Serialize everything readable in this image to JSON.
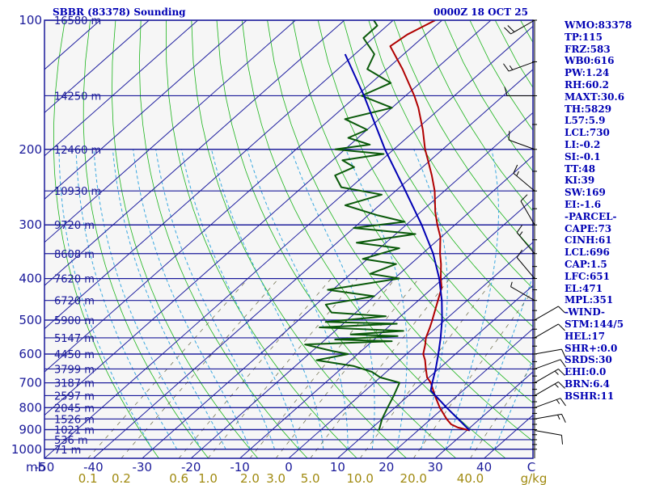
{
  "header": {
    "station_title": "SBBR (83378) Sounding",
    "valid_time": "0000Z 18 OCT 25"
  },
  "indices": [
    {
      "label": "WMO:83378"
    },
    {
      "label": "TP:115"
    },
    {
      "label": "FRZ:583"
    },
    {
      "label": "WB0:616"
    },
    {
      "label": "PW:1.24"
    },
    {
      "label": "RH:60.2"
    },
    {
      "label": "MAXT:30.6"
    },
    {
      "label": "TH:5829"
    },
    {
      "label": "L57:5.9"
    },
    {
      "label": "LCL:730"
    },
    {
      "label": "LI:-0.2"
    },
    {
      "label": "SI:-0.1"
    },
    {
      "label": "TT:48"
    },
    {
      "label": "KI:39"
    },
    {
      "label": "SW:169"
    },
    {
      "label": "EI:-1.6"
    },
    {
      "label": "-PARCEL-"
    },
    {
      "label": "CAPE:73"
    },
    {
      "label": "CINH:61"
    },
    {
      "label": "LCL:696"
    },
    {
      "label": "CAP:1.5"
    },
    {
      "label": "LFC:651"
    },
    {
      "label": "EL:471"
    },
    {
      "label": "MPL:351"
    },
    {
      "label": "-WIND-"
    },
    {
      "label": "STM:144/5"
    },
    {
      "label": "HEL:17"
    },
    {
      "label": "SHR+:0.0"
    },
    {
      "label": "SRDS:30"
    },
    {
      "label": "EHI:0.0"
    },
    {
      "label": "BRN:6.4"
    },
    {
      "label": "BSHR:11"
    }
  ],
  "chart_data": {
    "type": "skew-t log-p",
    "title": "SBBR (83378) Sounding",
    "valid_time": "0000Z 18 OCT 25",
    "pressure_unit": "mb",
    "temperature_unit": "C",
    "mixing_ratio_unit": "g/kg",
    "pressure_levels": [
      100,
      200,
      300,
      400,
      500,
      600,
      700,
      800,
      900,
      1000
    ],
    "pressure_tick_labels": [
      "100",
      "200",
      "300",
      "400",
      "500",
      "600",
      "700",
      "800",
      "900",
      "1000"
    ],
    "pressure_axis_label": "mb",
    "pressure_range": [
      100,
      1050
    ],
    "temperature_ticks": [
      -50,
      -40,
      -30,
      -20,
      -10,
      0,
      10,
      20,
      30,
      40
    ],
    "temperature_tick_labels": [
      "-50",
      "-40",
      "-30",
      "-20",
      "-10",
      "0",
      "10",
      "20",
      "30",
      "40"
    ],
    "temperature_range_at_bottom": [
      -50,
      50
    ],
    "temperature_axis_label": "C",
    "mixing_ratio_ticks": [
      0.1,
      0.2,
      0.6,
      1.0,
      2.0,
      3.0,
      5.0,
      10.0,
      20.0,
      40.0
    ],
    "mixing_ratio_tick_labels": [
      "0.1",
      "0.2",
      "0.6",
      "1.0",
      "2.0",
      "3.0",
      "5.0",
      "10.0",
      "20.0",
      "40.0"
    ],
    "mixing_ratio_axis_label": "g/kg",
    "height_levels": [
      {
        "label": "16580 m",
        "pressure": 100
      },
      {
        "label": "14250 m",
        "pressure": 150
      },
      {
        "label": "12460 m",
        "pressure": 200
      },
      {
        "label": "10930 m",
        "pressure": 250
      },
      {
        "label": "9720 m",
        "pressure": 300
      },
      {
        "label": "8608 m",
        "pressure": 350
      },
      {
        "label": "7620 m",
        "pressure": 400
      },
      {
        "label": "6720 m",
        "pressure": 450
      },
      {
        "label": "5900 m",
        "pressure": 500
      },
      {
        "label": "5147 m",
        "pressure": 550
      },
      {
        "label": "4450 m",
        "pressure": 600
      },
      {
        "label": "3799 m",
        "pressure": 650
      },
      {
        "label": "3187 m",
        "pressure": 700
      },
      {
        "label": "2597 m",
        "pressure": 750
      },
      {
        "label": "2045 m",
        "pressure": 800
      },
      {
        "label": "1526 m",
        "pressure": 850
      },
      {
        "label": "1021 m",
        "pressure": 900
      },
      {
        "label": "536 m",
        "pressure": 950
      },
      {
        "label": "71 m",
        "pressure": 1000
      }
    ],
    "series": [
      {
        "name": "Temperature",
        "color": "#b00000",
        "points": [
          [
            904,
            30.6
          ],
          [
            890,
            27.5
          ],
          [
            875,
            25.4
          ],
          [
            850,
            23.2
          ],
          [
            800,
            19.2
          ],
          [
            750,
            15.4
          ],
          [
            700,
            11.6
          ],
          [
            680,
            9.6
          ],
          [
            650,
            7.4
          ],
          [
            620,
            5.2
          ],
          [
            600,
            3.4
          ],
          [
            570,
            1.6
          ],
          [
            550,
            0.2
          ],
          [
            520,
            -1.4
          ],
          [
            500,
            -2.6
          ],
          [
            470,
            -4.6
          ],
          [
            450,
            -6.0
          ],
          [
            420,
            -8.2
          ],
          [
            400,
            -10.5
          ],
          [
            370,
            -13.8
          ],
          [
            350,
            -16.4
          ],
          [
            320,
            -20.2
          ],
          [
            300,
            -23.6
          ],
          [
            280,
            -27.0
          ],
          [
            250,
            -32.0
          ],
          [
            230,
            -36.2
          ],
          [
            210,
            -41.0
          ],
          [
            200,
            -43.6
          ],
          [
            180,
            -48.6
          ],
          [
            160,
            -54.6
          ],
          [
            150,
            -58.2
          ],
          [
            130,
            -66.8
          ],
          [
            115,
            -74.6
          ],
          [
            108,
            -73.8
          ],
          [
            100,
            -71.4
          ]
        ]
      },
      {
        "name": "Dewpoint",
        "color": "#0a5a0a",
        "points": [
          [
            904,
            12.0
          ],
          [
            850,
            10.0
          ],
          [
            800,
            8.5
          ],
          [
            750,
            7.0
          ],
          [
            700,
            5.2
          ],
          [
            680,
            0.0
          ],
          [
            660,
            -3.0
          ],
          [
            640,
            -8.0
          ],
          [
            620,
            -17.0
          ],
          [
            600,
            -12.0
          ],
          [
            590,
            -16.0
          ],
          [
            570,
            -23.0
          ],
          [
            560,
            -6.0
          ],
          [
            555,
            -18.0
          ],
          [
            545,
            -6.0
          ],
          [
            540,
            -16.0
          ],
          [
            530,
            -6.0
          ],
          [
            520,
            -24.0
          ],
          [
            510,
            -9.0
          ],
          [
            505,
            -24.0
          ],
          [
            490,
            -13.0
          ],
          [
            480,
            -25.0
          ],
          [
            460,
            -28.0
          ],
          [
            440,
            -20.0
          ],
          [
            425,
            -31.0
          ],
          [
            400,
            -19.0
          ],
          [
            390,
            -26.0
          ],
          [
            370,
            -23.0
          ],
          [
            360,
            -31.0
          ],
          [
            340,
            -26.0
          ],
          [
            330,
            -36.0
          ],
          [
            315,
            -26.0
          ],
          [
            305,
            -40.0
          ],
          [
            295,
            -31.0
          ],
          [
            285,
            -38.0
          ],
          [
            270,
            -47.0
          ],
          [
            255,
            -42.0
          ],
          [
            245,
            -52.0
          ],
          [
            230,
            -56.0
          ],
          [
            220,
            -54.0
          ],
          [
            212,
            -58.0
          ],
          [
            205,
            -51.0
          ],
          [
            200,
            -62.0
          ],
          [
            195,
            -56.0
          ],
          [
            188,
            -62.0
          ],
          [
            180,
            -60.0
          ],
          [
            170,
            -67.0
          ],
          [
            160,
            -60.0
          ],
          [
            150,
            -69.0
          ],
          [
            140,
            -66.0
          ],
          [
            130,
            -74.0
          ],
          [
            120,
            -76.0
          ],
          [
            110,
            -82.0
          ],
          [
            103,
            -82.0
          ],
          [
            100,
            -84.0
          ]
        ]
      },
      {
        "name": "Parcel",
        "color": "#0000b4",
        "points": [
          [
            904,
            30.6
          ],
          [
            800,
            20.6
          ],
          [
            730,
            13.4
          ],
          [
            700,
            11.9
          ],
          [
            650,
            9.4
          ],
          [
            600,
            6.5
          ],
          [
            550,
            3.2
          ],
          [
            500,
            -0.6
          ],
          [
            450,
            -5.2
          ],
          [
            400,
            -10.8
          ],
          [
            350,
            -17.8
          ],
          [
            300,
            -26.8
          ],
          [
            250,
            -38.0
          ],
          [
            200,
            -51.8
          ],
          [
            150,
            -68.5
          ],
          [
            120,
            -82.0
          ]
        ]
      }
    ],
    "wind_barbs": [
      {
        "pressure": 904,
        "direction": 100,
        "speed_kt": 10
      },
      {
        "pressure": 850,
        "direction": 80,
        "speed_kt": 15
      },
      {
        "pressure": 800,
        "direction": 70,
        "speed_kt": 15
      },
      {
        "pressure": 750,
        "direction": 60,
        "speed_kt": 15
      },
      {
        "pressure": 700,
        "direction": 60,
        "speed_kt": 15
      },
      {
        "pressure": 650,
        "direction": 70,
        "speed_kt": 10
      },
      {
        "pressure": 600,
        "direction": 80,
        "speed_kt": 10
      },
      {
        "pressure": 550,
        "direction": 60,
        "speed_kt": 10
      },
      {
        "pressure": 500,
        "direction": 60,
        "speed_kt": 10
      },
      {
        "pressure": 450,
        "direction": 300,
        "speed_kt": 5
      },
      {
        "pressure": 400,
        "direction": 320,
        "speed_kt": 10
      },
      {
        "pressure": 350,
        "direction": 320,
        "speed_kt": 15
      },
      {
        "pressure": 300,
        "direction": 330,
        "speed_kt": 10
      },
      {
        "pressure": 250,
        "direction": 310,
        "speed_kt": 15
      },
      {
        "pressure": 200,
        "direction": 290,
        "speed_kt": 10
      },
      {
        "pressure": 150,
        "direction": 270,
        "speed_kt": 10
      },
      {
        "pressure": 125,
        "direction": 250,
        "speed_kt": 15
      },
      {
        "pressure": 100,
        "direction": 240,
        "speed_kt": 20
      }
    ]
  }
}
